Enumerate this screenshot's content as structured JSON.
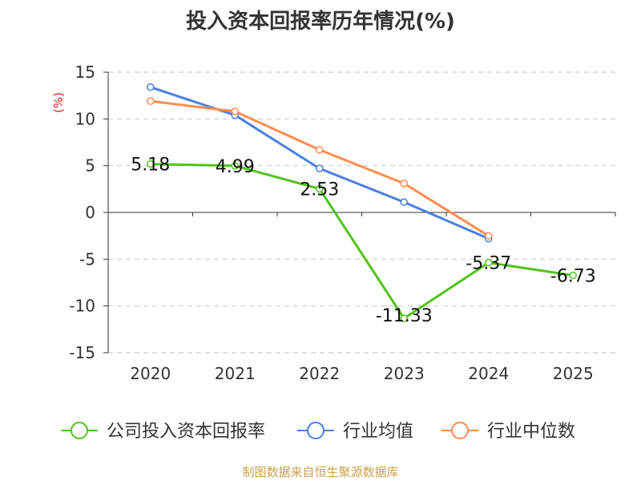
{
  "chart_data": {
    "type": "line",
    "title": "投入资本回报率历年情况(%)",
    "ylabel": "(%)",
    "xlabel": "",
    "categories": [
      "2020",
      "2021",
      "2022",
      "2023",
      "2024",
      "2025"
    ],
    "ylim": [
      -15,
      15
    ],
    "yticks": [
      15,
      10,
      5,
      0,
      -5,
      -10,
      -15
    ],
    "grid": true,
    "legend_position": "bottom",
    "series": [
      {
        "name": "公司投入资本回报率",
        "color": "#52c41a",
        "values": [
          5.18,
          4.99,
          2.53,
          -11.33,
          -5.37,
          -6.73
        ],
        "labels": [
          "5.18",
          "4.99",
          "2.53",
          "-11.33",
          "-5.37",
          "-6.73"
        ]
      },
      {
        "name": "行业均值",
        "color": "#4a7fe0",
        "values": [
          13.4,
          10.4,
          4.7,
          1.1,
          -2.8,
          null
        ]
      },
      {
        "name": "行业中位数",
        "color": "#ff8c50",
        "values": [
          11.9,
          10.8,
          6.7,
          3.1,
          -2.5,
          null
        ]
      }
    ]
  },
  "footer": "制图数据来自恒生聚源数据库"
}
